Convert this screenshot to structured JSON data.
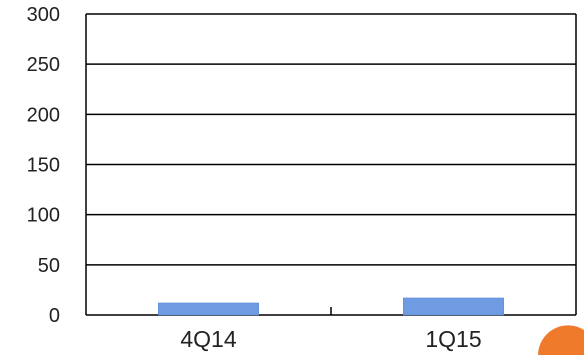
{
  "chart_data": {
    "type": "bar",
    "title": "",
    "xlabel": "",
    "ylabel": "",
    "categories": [
      "4Q14",
      "1Q15"
    ],
    "values": [
      12,
      17
    ],
    "ylim": [
      0,
      300
    ],
    "yticks": [
      0,
      50,
      100,
      150,
      200,
      250,
      300
    ],
    "ytick_labels": [
      "0",
      "50",
      "100",
      "150",
      "200",
      "250",
      "300"
    ],
    "grid": true,
    "legend": "none",
    "colors": {
      "bar": "#6f9be3",
      "bar_stroke": "#5b87cf",
      "axis": "#000000",
      "text": "#222222",
      "accent_corner": "#f07a2c"
    }
  }
}
